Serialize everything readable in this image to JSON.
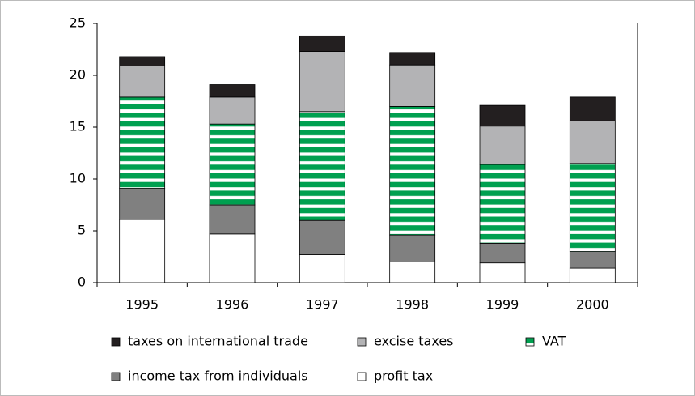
{
  "chart_data": {
    "type": "stacked_bar",
    "categories": [
      "1995",
      "1996",
      "1997",
      "1998",
      "1999",
      "2000"
    ],
    "series": [
      {
        "name": "taxes on international trade",
        "color": "#231f20",
        "values": [
          0.9,
          1.2,
          1.5,
          1.2,
          2.0,
          2.3
        ]
      },
      {
        "name": "excise taxes",
        "color": "#b3b3b5",
        "values": [
          3.0,
          2.6,
          5.8,
          4.0,
          3.7,
          4.1
        ]
      },
      {
        "name": "VAT",
        "color": "#00a050",
        "pattern": "stripes",
        "values": [
          8.8,
          7.8,
          10.5,
          12.4,
          7.6,
          8.5
        ]
      },
      {
        "name": "income tax from individuals",
        "color": "#808080",
        "values": [
          3.0,
          2.8,
          3.3,
          2.6,
          1.9,
          1.6
        ]
      },
      {
        "name": "profit tax",
        "color": "#ffffff",
        "values": [
          6.1,
          4.7,
          2.7,
          2.0,
          1.9,
          1.4
        ]
      }
    ],
    "ylim": [
      0,
      25
    ],
    "yticks": [
      0,
      5,
      10,
      15,
      20,
      25
    ],
    "grid": false,
    "legend": "bottom"
  }
}
